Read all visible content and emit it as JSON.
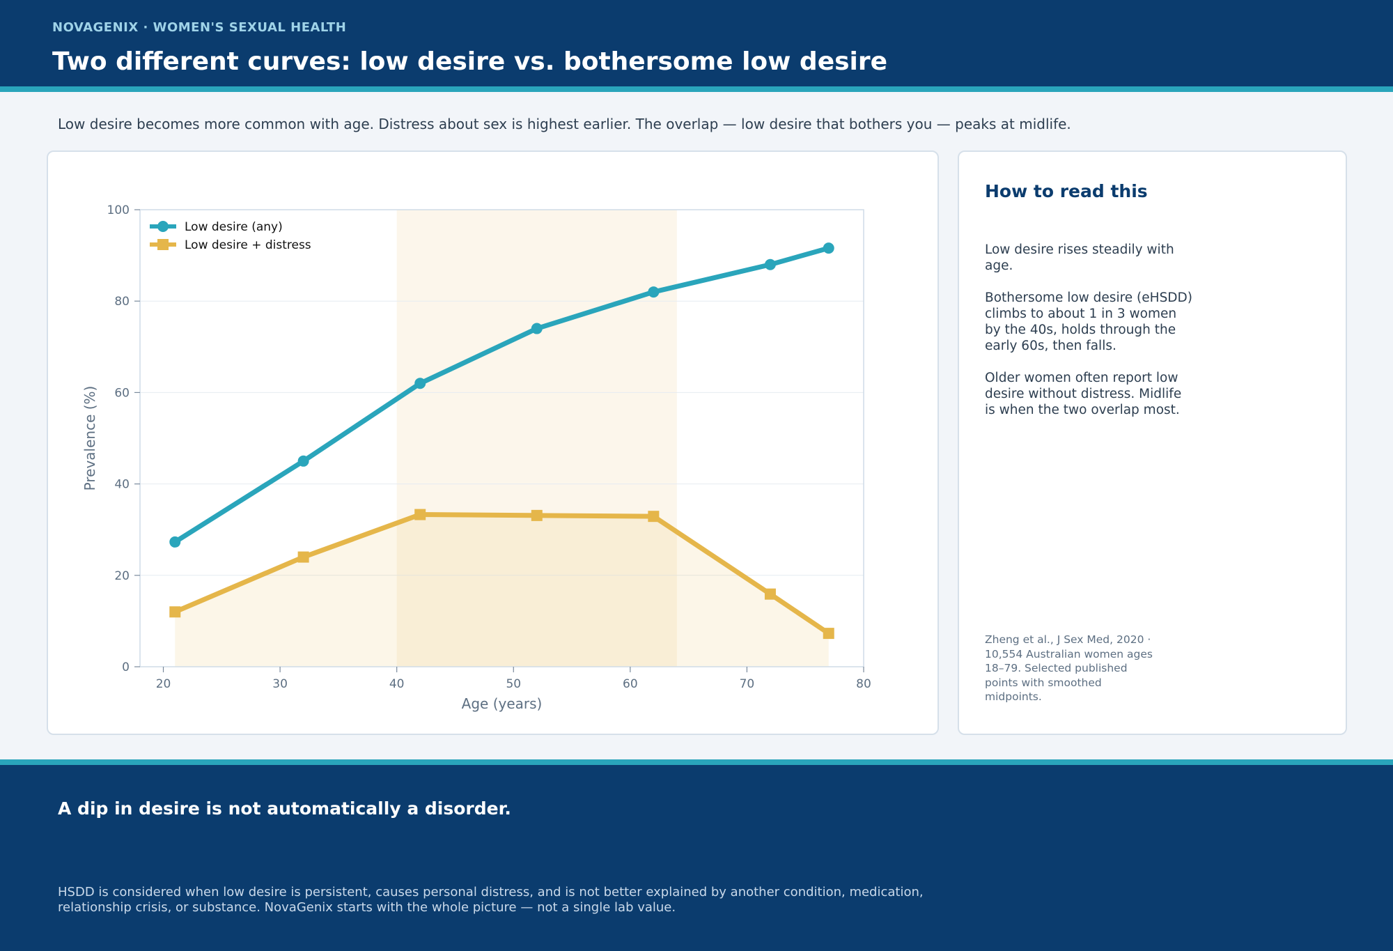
{
  "header": {
    "eyebrow": "NOVAGENIX  ·  WOMEN'S SEXUAL HEALTH",
    "title": "Two different curves: low desire vs. bothersome low desire"
  },
  "subtitle": "Low desire becomes more common with age. Distress about sex is highest earlier. The overlap — low desire that bothers you — peaks at midlife.",
  "colors": {
    "navy": "#0b3c6e",
    "teal": "#2aa5bb",
    "gold": "#e5b64a",
    "highlight": "#fbf3e4"
  },
  "chart_data": {
    "type": "line",
    "xlabel": "Age (years)",
    "ylabel": "Prevalence (%)",
    "xlim": [
      18,
      80
    ],
    "ylim": [
      0,
      100
    ],
    "xticks": [
      20,
      30,
      40,
      50,
      60,
      70,
      80
    ],
    "yticks": [
      0,
      20,
      40,
      60,
      80,
      100
    ],
    "grid": "horizontal",
    "legend": "top-left",
    "highlight_band": [
      40,
      64
    ],
    "series": [
      {
        "name": "Low desire (any)",
        "marker": "circle",
        "color": "#2aa5bb",
        "x": [
          21,
          32,
          42,
          52,
          62,
          72,
          77
        ],
        "y": [
          27.3,
          45,
          62,
          74,
          82,
          88,
          91.6
        ]
      },
      {
        "name": "Low desire + distress",
        "marker": "square",
        "color": "#e5b64a",
        "fill": true,
        "x": [
          21,
          32,
          42,
          52,
          62,
          72,
          77
        ],
        "y": [
          12,
          24,
          33.3,
          33.1,
          32.9,
          15.9,
          7.3
        ]
      }
    ]
  },
  "sidebar": {
    "title": "How to read this",
    "paragraphs": [
      "Low desire rises steadily with age.",
      "Bothersome low desire (eHSDD) climbs to about 1 in 3 women by the 40s, holds through the early 60s, then falls.",
      "Older women often report low desire without distress. Midlife is when the two overlap most."
    ],
    "source": "Zheng et al., J Sex Med, 2020  ·  10,554 Australian women ages 18–79. Selected published points with smoothed midpoints."
  },
  "footer": {
    "headline": "A dip in desire is not automatically a disorder.",
    "body": "HSDD is considered when low desire is persistent, causes personal distress, and is not better explained by another condition, medication, relationship crisis, or substance. NovaGenix starts with the whole picture — not a single lab value."
  }
}
